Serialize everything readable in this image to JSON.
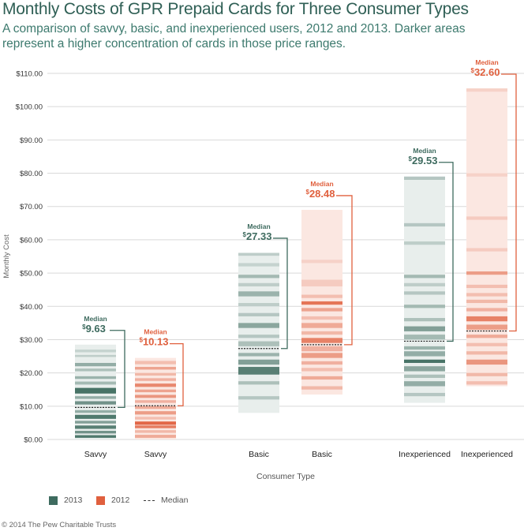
{
  "colors": {
    "c2013": "#3e6b5f",
    "c2012": "#e0603e",
    "c2013_bg": "#e8eeec",
    "c2012_bg": "#fbe7e1",
    "title": "#2f5f55",
    "grid": "#d9d9d9"
  },
  "chart_data": {
    "type": "bar",
    "title": "Monthly Costs of GPR Prepaid Cards for Three Consumer Types",
    "subtitle": "A comparison of savvy, basic, and inexperienced users, 2012 and 2013. Darker areas represent a higher concentration of cards in those price ranges.",
    "xlabel": "Consumer Type",
    "ylabel": "Monthly Cost",
    "ylim": [
      0,
      110
    ],
    "y_ticks": [
      "$0.00",
      "$10.00",
      "$20.00",
      "$30.00",
      "$40.00",
      "$50.00",
      "$60.00",
      "$70.00",
      "$80.00",
      "$90.00",
      "$100.00",
      "$110.00"
    ],
    "median_label": "Median",
    "median_prefix": "$",
    "legend": [
      "2013",
      "2012",
      "Median"
    ],
    "bars": [
      {
        "category": "Savvy",
        "year": "2013",
        "min": 0,
        "max": 28.5,
        "median": 9.63,
        "median_text": "9.63",
        "bands": [
          [
            0.5,
            1.3,
            0.9
          ],
          [
            1.8,
            2.6,
            0.7
          ],
          [
            3.2,
            4.2,
            0.85
          ],
          [
            4.8,
            5.6,
            0.6
          ],
          [
            6.2,
            7.4,
            0.9
          ],
          [
            8.0,
            8.8,
            0.5
          ],
          [
            10.5,
            11.5,
            0.7
          ],
          [
            12.2,
            13.0,
            0.5
          ],
          [
            13.8,
            15.5,
            0.95
          ],
          [
            16.5,
            17.4,
            0.4
          ],
          [
            18.2,
            19.0,
            0.45
          ],
          [
            20.5,
            21.3,
            0.35
          ],
          [
            22.0,
            23.0,
            0.5
          ],
          [
            24.8,
            25.4,
            0.25
          ],
          [
            26.2,
            27.0,
            0.2
          ]
        ]
      },
      {
        "category": "Savvy",
        "year": "2012",
        "min": 0,
        "max": 24.5,
        "median": 10.13,
        "median_text": "10.13",
        "bands": [
          [
            0.5,
            1.4,
            0.45
          ],
          [
            2.0,
            2.8,
            0.35
          ],
          [
            3.4,
            4.2,
            0.8
          ],
          [
            4.4,
            5.4,
            0.95
          ],
          [
            6.0,
            6.8,
            0.3
          ],
          [
            7.5,
            8.5,
            0.55
          ],
          [
            9.2,
            10.0,
            0.45
          ],
          [
            11.0,
            11.8,
            0.4
          ],
          [
            12.5,
            13.4,
            0.6
          ],
          [
            14.2,
            15.0,
            0.5
          ],
          [
            15.8,
            16.8,
            0.7
          ],
          [
            17.6,
            18.4,
            0.4
          ],
          [
            19.2,
            20.0,
            0.35
          ],
          [
            21.0,
            21.8,
            0.5
          ],
          [
            22.6,
            23.6,
            0.3
          ]
        ]
      },
      {
        "category": "Basic",
        "year": "2013",
        "min": 8,
        "max": 56.2,
        "median": 27.33,
        "median_text": "27.33",
        "bands": [
          [
            12.0,
            13.0,
            0.3
          ],
          [
            16.5,
            17.5,
            0.35
          ],
          [
            19.5,
            21.8,
            0.85
          ],
          [
            22.5,
            24.0,
            0.6
          ],
          [
            25.0,
            26.0,
            0.45
          ],
          [
            28.0,
            29.5,
            0.35
          ],
          [
            30.5,
            31.5,
            0.3
          ],
          [
            33.5,
            35.0,
            0.55
          ],
          [
            37.0,
            38.0,
            0.3
          ],
          [
            40.0,
            41.0,
            0.25
          ],
          [
            43.0,
            44.5,
            0.45
          ],
          [
            46.0,
            47.0,
            0.25
          ],
          [
            48.5,
            49.5,
            0.4
          ],
          [
            52.0,
            53.0,
            0.2
          ],
          [
            55.2,
            56.0,
            0.25
          ]
        ]
      },
      {
        "category": "Basic",
        "year": "2012",
        "min": 13.5,
        "max": 69,
        "median": 28.48,
        "median_text": "28.48",
        "bands": [
          [
            15.0,
            16.0,
            0.35
          ],
          [
            18.0,
            19.0,
            0.45
          ],
          [
            20.5,
            21.5,
            0.3
          ],
          [
            22.5,
            23.5,
            0.4
          ],
          [
            24.5,
            26.0,
            0.55
          ],
          [
            26.5,
            28.0,
            0.4
          ],
          [
            29.0,
            30.5,
            0.75
          ],
          [
            31.5,
            32.5,
            0.35
          ],
          [
            33.5,
            35.0,
            0.45
          ],
          [
            36.0,
            37.0,
            0.3
          ],
          [
            38.5,
            39.5,
            0.5
          ],
          [
            40.5,
            41.5,
            0.85
          ],
          [
            42.5,
            43.5,
            0.3
          ],
          [
            46.0,
            48.0,
            0.2
          ],
          [
            53.0,
            54.0,
            0.15
          ]
        ]
      },
      {
        "category": "Inexperienced",
        "year": "2013",
        "min": 11,
        "max": 79,
        "median": 29.53,
        "median_text": "29.53",
        "bands": [
          [
            13.0,
            14.0,
            0.3
          ],
          [
            16.0,
            17.5,
            0.5
          ],
          [
            18.5,
            19.5,
            0.35
          ],
          [
            20.5,
            22.0,
            0.55
          ],
          [
            23.0,
            24.0,
            0.95
          ],
          [
            25.0,
            26.5,
            0.5
          ],
          [
            27.0,
            28.0,
            0.45
          ],
          [
            30.0,
            31.5,
            0.4
          ],
          [
            32.5,
            34.0,
            0.6
          ],
          [
            35.5,
            36.5,
            0.35
          ],
          [
            39.5,
            40.5,
            0.4
          ],
          [
            43.5,
            44.5,
            0.3
          ],
          [
            46.0,
            47.0,
            0.25
          ],
          [
            48.5,
            49.5,
            0.4
          ],
          [
            58.5,
            59.5,
            0.25
          ],
          [
            64.0,
            65.0,
            0.3
          ],
          [
            78.0,
            79.0,
            0.3
          ]
        ]
      },
      {
        "category": "Inexperienced",
        "year": "2012",
        "min": 16,
        "max": 105.5,
        "median": 32.6,
        "median_text": "32.60",
        "bands": [
          [
            16.5,
            17.5,
            0.3
          ],
          [
            19.0,
            20.0,
            0.35
          ],
          [
            22.5,
            24.0,
            0.6
          ],
          [
            25.5,
            26.5,
            0.35
          ],
          [
            28.0,
            29.0,
            0.3
          ],
          [
            30.5,
            31.5,
            0.45
          ],
          [
            33.0,
            34.5,
            0.55
          ],
          [
            35.5,
            37.0,
            0.75
          ],
          [
            38.5,
            39.5,
            0.4
          ],
          [
            41.0,
            42.0,
            0.35
          ],
          [
            43.0,
            44.0,
            0.3
          ],
          [
            45.5,
            46.5,
            0.3
          ],
          [
            49.5,
            50.5,
            0.55
          ],
          [
            56.5,
            57.5,
            0.2
          ],
          [
            66.0,
            67.0,
            0.2
          ],
          [
            79.0,
            80.0,
            0.15
          ],
          [
            104.5,
            105.5,
            0.15
          ]
        ]
      }
    ]
  },
  "legend": {
    "y2013": "2013",
    "y2012": "2012",
    "median": "Median"
  },
  "footer": "© 2014 The Pew Charitable Trusts"
}
